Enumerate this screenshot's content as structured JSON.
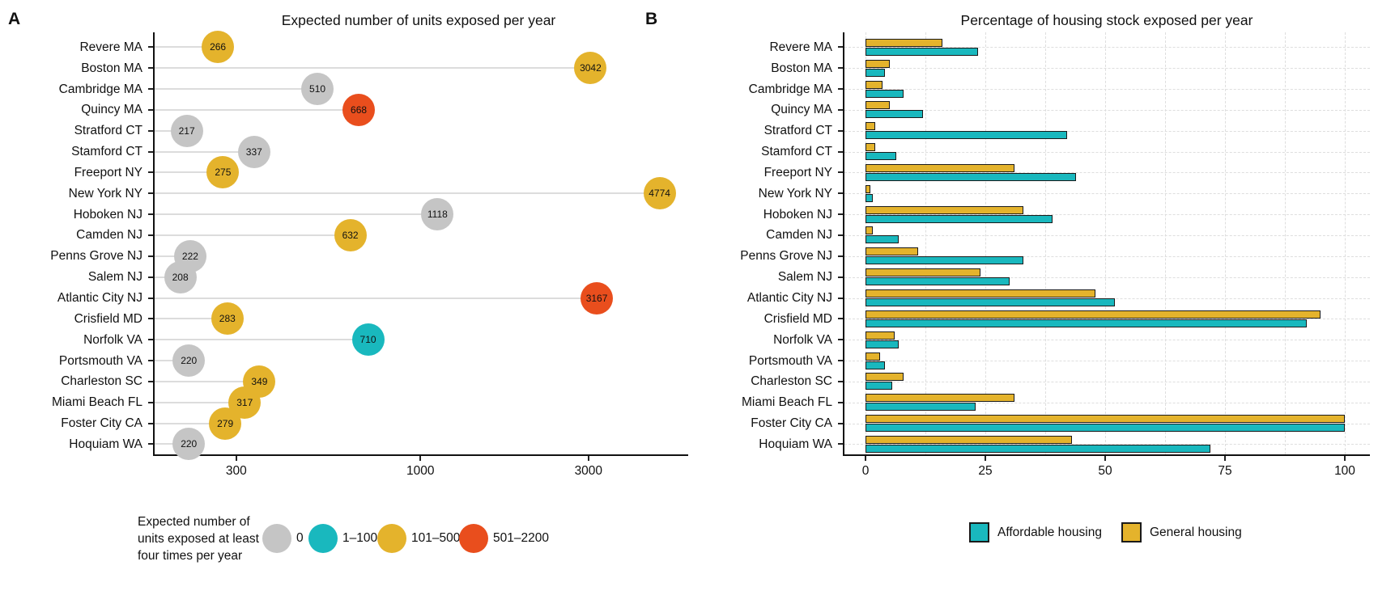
{
  "colors": {
    "gray": "#C5C5C5",
    "teal": "#19B8BE",
    "yellow": "#E4B32C",
    "red": "#E94E1D",
    "bar_outline": "#1A1A1A",
    "stem": "#DCDCDC",
    "grid": "#DEDEDE",
    "axis": "#111111"
  },
  "panels": {
    "a": {
      "letter": "A",
      "title": "Expected number of units exposed per year"
    },
    "b": {
      "letter": "B",
      "title": "Percentage of housing stock exposed per year"
    }
  },
  "chart_data": [
    {
      "type": "scatter",
      "panel": "A",
      "title": "Expected number of units exposed per year",
      "x_scale": "log10",
      "x_domain": [
        175,
        5600
      ],
      "x_ticks": [
        300,
        1000,
        3000
      ],
      "xlabel": "",
      "ylabel": "",
      "grid": false,
      "legend_title_lines": [
        "Expected number of",
        "units exposed at least",
        "four times per year"
      ],
      "legend_items": [
        {
          "label": "0",
          "color": "gray"
        },
        {
          "label": "1–100",
          "color": "teal"
        },
        {
          "label": "101–500",
          "color": "yellow"
        },
        {
          "label": "501–2200",
          "color": "red"
        }
      ],
      "points": [
        {
          "city": "Revere MA",
          "value": 266,
          "color": "yellow",
          "category": "101–500"
        },
        {
          "city": "Boston MA",
          "value": 3042,
          "color": "yellow",
          "category": "101–500"
        },
        {
          "city": "Cambridge MA",
          "value": 510,
          "color": "gray",
          "category": "0"
        },
        {
          "city": "Quincy MA",
          "value": 668,
          "color": "red",
          "category": "501–2200"
        },
        {
          "city": "Stratford CT",
          "value": 217,
          "color": "gray",
          "category": "0"
        },
        {
          "city": "Stamford CT",
          "value": 337,
          "color": "gray",
          "category": "0"
        },
        {
          "city": "Freeport NY",
          "value": 275,
          "color": "yellow",
          "category": "101–500"
        },
        {
          "city": "New York NY",
          "value": 4774,
          "color": "yellow",
          "category": "101–500"
        },
        {
          "city": "Hoboken NJ",
          "value": 1118,
          "color": "gray",
          "category": "0"
        },
        {
          "city": "Camden NJ",
          "value": 632,
          "color": "yellow",
          "category": "101–500"
        },
        {
          "city": "Penns Grove NJ",
          "value": 222,
          "color": "gray",
          "category": "0"
        },
        {
          "city": "Salem NJ",
          "value": 208,
          "color": "gray",
          "category": "0"
        },
        {
          "city": "Atlantic City NJ",
          "value": 3167,
          "color": "red",
          "category": "501–2200"
        },
        {
          "city": "Crisfield MD",
          "value": 283,
          "color": "yellow",
          "category": "101–500"
        },
        {
          "city": "Norfolk VA",
          "value": 710,
          "color": "teal",
          "category": "1–100"
        },
        {
          "city": "Portsmouth VA",
          "value": 220,
          "color": "gray",
          "category": "0"
        },
        {
          "city": "Charleston SC",
          "value": 349,
          "color": "yellow",
          "category": "101–500"
        },
        {
          "city": "Miami Beach FL",
          "value": 317,
          "color": "yellow",
          "category": "101–500"
        },
        {
          "city": "Foster City CA",
          "value": 279,
          "color": "yellow",
          "category": "101–500"
        },
        {
          "city": "Hoquiam WA",
          "value": 220,
          "color": "gray",
          "category": "0"
        }
      ]
    },
    {
      "type": "bar",
      "panel": "B",
      "title": "Percentage of housing stock exposed per year",
      "orientation": "horizontal",
      "x_ticks": [
        0,
        25,
        50,
        75,
        100
      ],
      "xlim": [
        0,
        107
      ],
      "grid_step": 12.5,
      "grid": true,
      "categories": [
        "Revere MA",
        "Boston MA",
        "Cambridge MA",
        "Quincy MA",
        "Stratford CT",
        "Stamford CT",
        "Freeport NY",
        "New York NY",
        "Hoboken NJ",
        "Camden NJ",
        "Penns Grove NJ",
        "Salem NJ",
        "Atlantic City NJ",
        "Crisfield MD",
        "Norfolk VA",
        "Portsmouth VA",
        "Charleston SC",
        "Miami Beach FL",
        "Foster City CA",
        "Hoquiam WA"
      ],
      "series": [
        {
          "name": "General housing",
          "color": "yellow",
          "values": [
            16,
            5,
            3.5,
            5,
            2,
            2,
            31,
            1,
            33,
            1.5,
            11,
            24,
            48,
            95,
            6,
            3,
            8,
            31,
            100,
            43
          ]
        },
        {
          "name": "Affordable housing",
          "color": "teal",
          "values": [
            23.5,
            4,
            8,
            12,
            42,
            6.5,
            44,
            1.5,
            39,
            7,
            33,
            30,
            52,
            92,
            7,
            4,
            5.5,
            23,
            100,
            72
          ]
        }
      ],
      "legend_items": [
        {
          "label": "Affordable housing",
          "color": "teal"
        },
        {
          "label": "General housing",
          "color": "yellow"
        }
      ]
    }
  ]
}
